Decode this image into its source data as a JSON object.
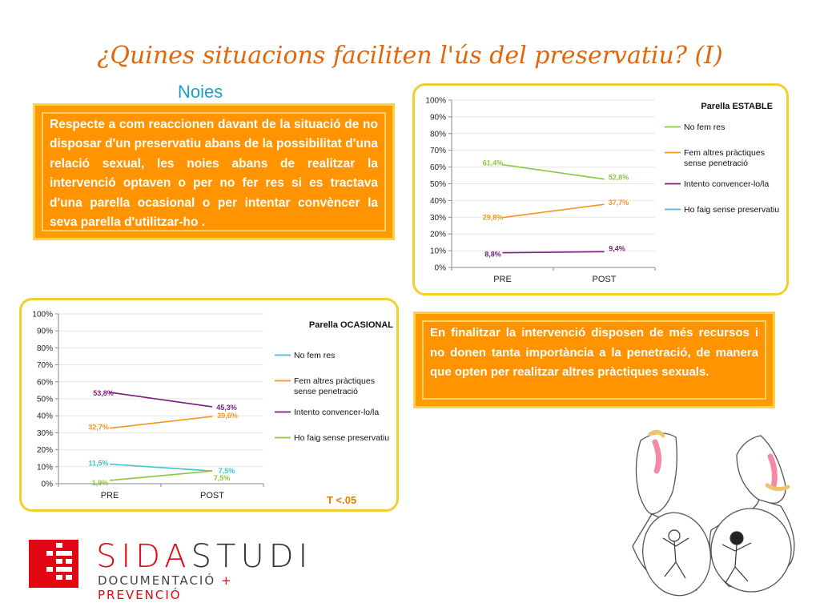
{
  "title": "¿Quines situacions faciliten l'ús del preservatiu? (I)",
  "subtitle": "Noies",
  "intro_text": "Respecte a com reaccionen davant de la situació de no disposar d'un preservatiu abans de la possibilitat d'una relació sexual, les noies abans de realitzar la intervenció optaven o per no fer res si es tractava d'una parella ocasional o per intentar convèncer la seva parella d'utilitzar-ho .",
  "conclusion_text": "En finalitzar la intervenció disposen de més recursos i no donen tanta importància a la penetració, de manera que opten per realitzar altres pràctiques sexuals.",
  "ttest": "T <.05",
  "logo": {
    "brand_a": "SIDA",
    "brand_b": "STUDI",
    "tag_a": "DOCUMENTACIÓ",
    "tag_plus": "+",
    "tag_b": "PREVENCIÓ"
  },
  "colors": {
    "green": "#8dc63f",
    "orange": "#f7941d",
    "purple": "#7b1a7e",
    "cyan": "#3cc3cf",
    "accent": "#ff9a00",
    "frame": "#f2cf2c"
  },
  "chart_data": [
    {
      "type": "line",
      "title": "Parella ESTABLE",
      "categories": [
        "PRE",
        "POST"
      ],
      "ylim": [
        0,
        100
      ],
      "yticks": [
        "0%",
        "10%",
        "20%",
        "30%",
        "40%",
        "50%",
        "60%",
        "70%",
        "80%",
        "90%",
        "100%"
      ],
      "grid": true,
      "legend_position": "right",
      "series": [
        {
          "name": "No  fem res",
          "color": "#8dc63f",
          "values": [
            61.4,
            52.8
          ],
          "labels": [
            "61,4%",
            "52,8%"
          ]
        },
        {
          "name": "Fem altres pràctiques sense penetració",
          "color": "#f7941d",
          "values": [
            29.8,
            37.7
          ],
          "labels": [
            "29,8%",
            "37,7%"
          ]
        },
        {
          "name": "Intento convencer-lo/la",
          "color": "#7b1a7e",
          "values": [
            8.8,
            9.4
          ],
          "labels": [
            "8,8%",
            "9,4%"
          ]
        },
        {
          "name": "Ho faig sense preservatiu",
          "color": "#3cc3cf",
          "values": null,
          "labels": null
        }
      ]
    },
    {
      "type": "line",
      "title": "Parella OCASIONAL",
      "categories": [
        "PRE",
        "POST"
      ],
      "ylim": [
        0,
        100
      ],
      "yticks": [
        "0%",
        "10%",
        "20%",
        "30%",
        "40%",
        "50%",
        "60%",
        "70%",
        "80%",
        "90%",
        "100%"
      ],
      "grid": true,
      "legend_position": "right",
      "series": [
        {
          "name": "No  fem res",
          "color": "#3cc3cf",
          "values": [
            11.5,
            7.5
          ],
          "labels": [
            "11,5%",
            "7,5%"
          ]
        },
        {
          "name": "Fem altres pràctiques sense penetració",
          "color": "#f7941d",
          "values": [
            32.7,
            39.6
          ],
          "labels": [
            "32,7%",
            "39,6%"
          ]
        },
        {
          "name": "Intento convencer-lo/la",
          "color": "#7b1a7e",
          "values": [
            53.8,
            45.3
          ],
          "labels": [
            "53,8%",
            "45,3%"
          ]
        },
        {
          "name": "Ho faig sense preservatiu",
          "color": "#8dc63f",
          "values": [
            1.9,
            7.5
          ],
          "labels": [
            "1,9%",
            "7,5%"
          ]
        }
      ]
    }
  ]
}
